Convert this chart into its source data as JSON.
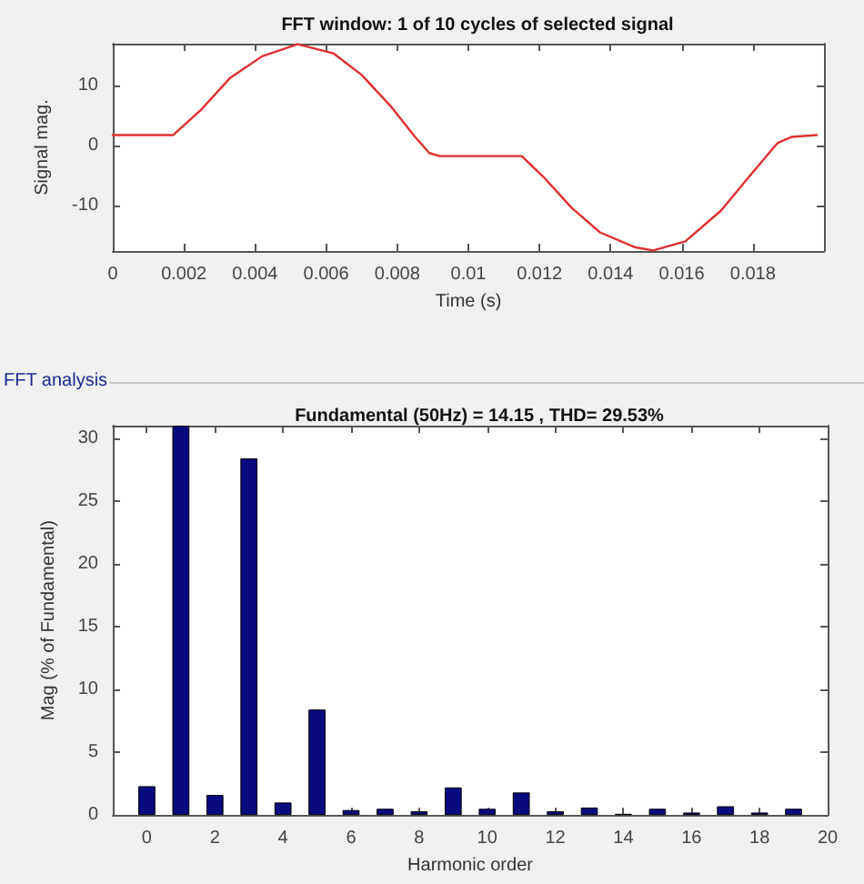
{
  "chart_data": [
    {
      "type": "line",
      "title": "FFT window: 1 of 10 cycles of selected signal",
      "xlabel": "Time (s)",
      "ylabel": "Signal mag.",
      "x": [
        0,
        0.0017,
        0.0025,
        0.0033,
        0.0042,
        0.0052,
        0.0062,
        0.007,
        0.0078,
        0.0085,
        0.0089,
        0.0092,
        0.0115,
        0.0121,
        0.0129,
        0.0137,
        0.0147,
        0.0152,
        0.0161,
        0.0171,
        0.0179,
        0.0187,
        0.0191,
        0.0198
      ],
      "series": [
        {
          "color": "#e03030",
          "values": [
            1.8,
            1.8,
            6.1,
            11.3,
            14.9,
            16.9,
            15.4,
            11.8,
            6.7,
            1.5,
            -1.2,
            -1.7,
            -1.7,
            -5.1,
            -10.3,
            -14.4,
            -16.9,
            -17.4,
            -15.9,
            -10.8,
            -5.1,
            0.5,
            1.5,
            1.8
          ]
        }
      ],
      "xlim": [
        0,
        0.02
      ],
      "xticks": [
        0,
        0.002,
        0.004,
        0.006,
        0.008,
        0.01,
        0.012,
        0.014,
        0.016,
        0.018
      ],
      "ylim": [
        -17.5,
        17
      ],
      "yticks": [
        -10,
        0,
        10
      ],
      "marker": "none",
      "line_style": "solid"
    },
    {
      "type": "bar",
      "title": "Fundamental (50Hz) = 14.15 , THD= 29.53%",
      "xlabel": "Harmonic order",
      "ylabel": "Mag (% of Fundamental)",
      "annotations": [
        "FFT analysis"
      ],
      "x": [
        0,
        1,
        2,
        3,
        4,
        5,
        6,
        7,
        8,
        9,
        10,
        11,
        12,
        13,
        14,
        15,
        16,
        17,
        18,
        19
      ],
      "series": [
        {
          "color": "#0a0a80",
          "values": [
            2.3,
            31,
            1.6,
            28.4,
            1.0,
            8.4,
            0.4,
            0.5,
            0.3,
            2.2,
            0.5,
            1.8,
            0.3,
            0.6,
            0.1,
            0.5,
            0.2,
            0.7,
            0.2,
            0.5
          ]
        }
      ],
      "xlim": [
        -1,
        20
      ],
      "xticks": [
        0,
        2,
        4,
        6,
        8,
        10,
        12,
        14,
        16,
        18,
        20
      ],
      "ylim": [
        0,
        31
      ],
      "yticks": [
        0,
        5,
        10,
        15,
        20,
        25,
        30
      ]
    }
  ]
}
